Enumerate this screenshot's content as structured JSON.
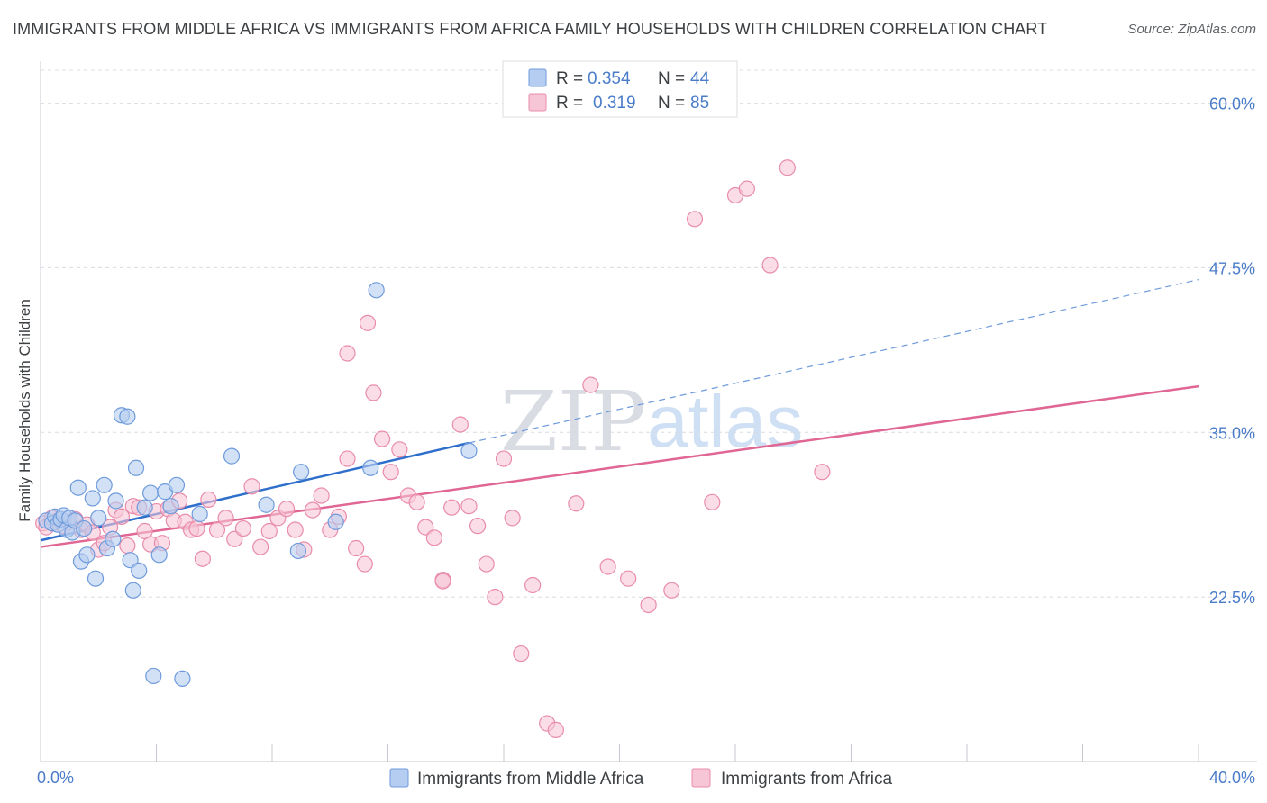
{
  "title": "IMMIGRANTS FROM MIDDLE AFRICA VS IMMIGRANTS FROM AFRICA FAMILY HOUSEHOLDS WITH CHILDREN CORRELATION CHART",
  "source": "Source: ZipAtlas.com",
  "watermark": {
    "zip": "ZIP",
    "atlas": "atlas"
  },
  "legend": {
    "r_label": "R =",
    "n_label": "N =",
    "rows": [
      {
        "r": "0.354",
        "n": "44"
      },
      {
        "r": "0.319",
        "n": "85"
      }
    ]
  },
  "colors": {
    "blue_fill": "#b4cdf0",
    "blue_stroke": "#6f9bdc",
    "blue_line": "#2f6fcc",
    "pink_fill": "#f7c6d6",
    "pink_stroke": "#e98cab",
    "pink_line": "#e06693",
    "grid": "#d8dce1",
    "tick_text": "#4a7cc9"
  },
  "chart_data": {
    "type": "scatter",
    "xlabel": "",
    "ylabel": "Family Households with Children",
    "xlim": [
      0,
      40
    ],
    "ylim": [
      10,
      62.5
    ],
    "x_tick_labels": [
      "0.0%",
      "40.0%"
    ],
    "y_ticks": [
      22.5,
      35.0,
      47.5,
      60.0
    ],
    "y_tick_labels": [
      "22.5%",
      "35.0%",
      "47.5%",
      "60.0%"
    ],
    "grid": true,
    "legend_position": "top-center",
    "series": [
      {
        "name": "Immigrants from Middle Africa",
        "color": "#6f9bdc",
        "points": [
          [
            0.2,
            28.3
          ],
          [
            0.4,
            28.1
          ],
          [
            0.5,
            28.6
          ],
          [
            0.6,
            28.0
          ],
          [
            0.7,
            28.4
          ],
          [
            0.8,
            28.7
          ],
          [
            0.9,
            27.6
          ],
          [
            1.0,
            28.5
          ],
          [
            1.1,
            27.4
          ],
          [
            1.2,
            28.3
          ],
          [
            1.3,
            30.8
          ],
          [
            1.4,
            25.2
          ],
          [
            1.5,
            27.7
          ],
          [
            1.6,
            25.7
          ],
          [
            1.8,
            30.0
          ],
          [
            1.9,
            23.9
          ],
          [
            2.0,
            28.5
          ],
          [
            2.2,
            31.0
          ],
          [
            2.3,
            26.2
          ],
          [
            2.5,
            26.9
          ],
          [
            2.6,
            29.8
          ],
          [
            2.8,
            36.3
          ],
          [
            3.0,
            36.2
          ],
          [
            3.1,
            25.3
          ],
          [
            3.2,
            23.0
          ],
          [
            3.3,
            32.3
          ],
          [
            3.4,
            24.5
          ],
          [
            3.6,
            29.3
          ],
          [
            3.8,
            30.4
          ],
          [
            3.9,
            16.5
          ],
          [
            4.1,
            25.7
          ],
          [
            4.3,
            30.5
          ],
          [
            4.5,
            29.4
          ],
          [
            4.7,
            31.0
          ],
          [
            4.9,
            16.3
          ],
          [
            5.5,
            28.8
          ],
          [
            6.6,
            33.2
          ],
          [
            7.8,
            29.5
          ],
          [
            8.9,
            26.0
          ],
          [
            9.0,
            32.0
          ],
          [
            10.2,
            28.2
          ],
          [
            11.4,
            32.3
          ],
          [
            11.6,
            45.8
          ],
          [
            14.8,
            33.6
          ]
        ]
      },
      {
        "name": "Immigrants from Africa",
        "color": "#e98cab",
        "points": [
          [
            0.1,
            28.1
          ],
          [
            0.2,
            27.8
          ],
          [
            0.4,
            28.5
          ],
          [
            0.6,
            28.3
          ],
          [
            0.8,
            27.9
          ],
          [
            1.0,
            28.2
          ],
          [
            1.2,
            28.4
          ],
          [
            1.4,
            27.6
          ],
          [
            1.6,
            28.0
          ],
          [
            1.8,
            27.4
          ],
          [
            2.0,
            26.1
          ],
          [
            2.2,
            26.6
          ],
          [
            2.4,
            27.8
          ],
          [
            2.6,
            29.1
          ],
          [
            2.8,
            28.6
          ],
          [
            3.0,
            26.4
          ],
          [
            3.2,
            29.4
          ],
          [
            3.4,
            29.3
          ],
          [
            3.6,
            27.5
          ],
          [
            3.8,
            26.5
          ],
          [
            4.0,
            29.0
          ],
          [
            4.2,
            26.6
          ],
          [
            4.4,
            29.2
          ],
          [
            4.6,
            28.3
          ],
          [
            4.8,
            29.8
          ],
          [
            5.0,
            28.2
          ],
          [
            5.2,
            27.6
          ],
          [
            5.4,
            27.7
          ],
          [
            5.6,
            25.4
          ],
          [
            5.8,
            29.9
          ],
          [
            6.1,
            27.6
          ],
          [
            6.4,
            28.5
          ],
          [
            6.7,
            26.9
          ],
          [
            7.0,
            27.7
          ],
          [
            7.3,
            30.9
          ],
          [
            7.6,
            26.3
          ],
          [
            7.9,
            27.5
          ],
          [
            8.2,
            28.5
          ],
          [
            8.5,
            29.2
          ],
          [
            8.8,
            27.6
          ],
          [
            9.1,
            26.1
          ],
          [
            9.4,
            29.1
          ],
          [
            9.7,
            30.2
          ],
          [
            10.0,
            27.6
          ],
          [
            10.3,
            28.6
          ],
          [
            10.6,
            33.0
          ],
          [
            10.9,
            26.2
          ],
          [
            11.2,
            25.0
          ],
          [
            11.5,
            38.0
          ],
          [
            11.8,
            34.5
          ],
          [
            12.1,
            32.0
          ],
          [
            12.4,
            33.7
          ],
          [
            12.7,
            30.2
          ],
          [
            13.0,
            29.7
          ],
          [
            13.3,
            27.8
          ],
          [
            13.6,
            27.0
          ],
          [
            13.9,
            23.8
          ],
          [
            14.2,
            29.3
          ],
          [
            14.5,
            35.6
          ],
          [
            14.8,
            29.4
          ],
          [
            15.1,
            27.9
          ],
          [
            15.4,
            25.0
          ],
          [
            15.7,
            22.5
          ],
          [
            16.0,
            33.0
          ],
          [
            16.3,
            28.5
          ],
          [
            16.6,
            18.2
          ],
          [
            17.0,
            23.4
          ],
          [
            17.5,
            12.9
          ],
          [
            17.8,
            12.4
          ],
          [
            18.5,
            29.6
          ],
          [
            19.0,
            38.6
          ],
          [
            19.6,
            24.8
          ],
          [
            20.3,
            23.9
          ],
          [
            21.0,
            21.9
          ],
          [
            21.8,
            23.0
          ],
          [
            22.6,
            51.2
          ],
          [
            23.2,
            29.7
          ],
          [
            24.0,
            53.0
          ],
          [
            24.4,
            53.5
          ],
          [
            25.2,
            47.7
          ],
          [
            25.8,
            55.1
          ],
          [
            27.0,
            32.0
          ],
          [
            10.6,
            41.0
          ],
          [
            11.3,
            43.3
          ],
          [
            13.9,
            23.7
          ]
        ]
      }
    ],
    "trendlines": [
      {
        "series": "Immigrants from Middle Africa",
        "x": [
          0,
          14.8
        ],
        "y": [
          26.8,
          34.2
        ],
        "extended_to": [
          40,
          46.6
        ],
        "extension_style": "dashed"
      },
      {
        "series": "Immigrants from Africa",
        "x": [
          0,
          40
        ],
        "y": [
          26.3,
          38.5
        ]
      }
    ]
  }
}
